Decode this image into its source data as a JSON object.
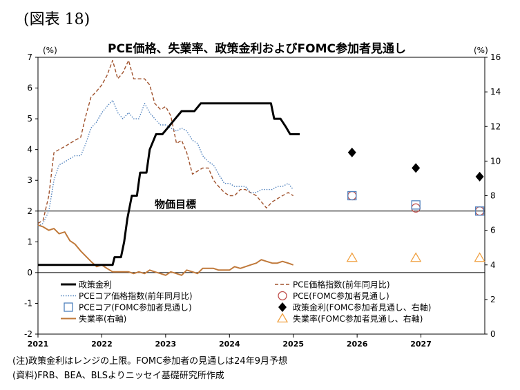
{
  "figure_label": "(図表 18)",
  "notes": [
    "(注)政策金利はレンジの上限。FOMC参加者の見通しは24年9月予想",
    "(資料)FRB、BEA、BLSよりニッセイ基礎研究所作成"
  ],
  "chart_data": {
    "type": "line",
    "title": "PCE価格、失業率、政策金利およびFOMC参加者見通し",
    "left_unit": "(%)",
    "right_unit": "(%)",
    "ylim_left": [
      -2,
      7
    ],
    "ylim_right": [
      0,
      16
    ],
    "x_range": [
      2021.0,
      2028.0
    ],
    "x_ticks": [
      "2021",
      "2022",
      "2023",
      "2024",
      "2025",
      "2026",
      "2027"
    ],
    "y_ticks_left": [
      "7",
      "6",
      "5",
      "4",
      "3",
      "2",
      "1",
      "0",
      "-1",
      "-2"
    ],
    "y_ticks_right": [
      "16",
      "14",
      "12",
      "10",
      "8",
      "6",
      "4",
      "2",
      "0"
    ],
    "target_line": {
      "value": 2,
      "label": "物価目標"
    },
    "grid": false,
    "legend_position": "bottom",
    "series": [
      {
        "name": "政策金利",
        "axis": "left",
        "style": "solid-thick",
        "color": "#000000",
        "points": [
          [
            2021.0,
            0.25
          ],
          [
            2022.0,
            0.25
          ],
          [
            2022.17,
            0.25
          ],
          [
            2022.2,
            0.5
          ],
          [
            2022.3,
            0.5
          ],
          [
            2022.35,
            1.0
          ],
          [
            2022.4,
            1.75
          ],
          [
            2022.47,
            2.5
          ],
          [
            2022.55,
            2.5
          ],
          [
            2022.6,
            3.25
          ],
          [
            2022.7,
            3.25
          ],
          [
            2022.75,
            4.0
          ],
          [
            2022.85,
            4.5
          ],
          [
            2022.95,
            4.5
          ],
          [
            2023.05,
            4.75
          ],
          [
            2023.15,
            5.0
          ],
          [
            2023.25,
            5.25
          ],
          [
            2023.35,
            5.25
          ],
          [
            2023.45,
            5.25
          ],
          [
            2023.55,
            5.5
          ],
          [
            2023.65,
            5.5
          ],
          [
            2024.65,
            5.5
          ],
          [
            2024.7,
            5.0
          ],
          [
            2024.8,
            5.0
          ],
          [
            2024.88,
            4.75
          ],
          [
            2024.95,
            4.5
          ],
          [
            2025.1,
            4.5
          ]
        ]
      },
      {
        "name": "PCE価格指数(前年同月比)",
        "axis": "left",
        "style": "dashed",
        "color": "#a0522d",
        "points": [
          [
            2021.0,
            1.6
          ],
          [
            2021.08,
            1.7
          ],
          [
            2021.17,
            2.5
          ],
          [
            2021.25,
            3.9
          ],
          [
            2021.33,
            4.0
          ],
          [
            2021.42,
            4.1
          ],
          [
            2021.5,
            4.2
          ],
          [
            2021.58,
            4.3
          ],
          [
            2021.67,
            4.4
          ],
          [
            2021.75,
            5.1
          ],
          [
            2021.83,
            5.7
          ],
          [
            2021.92,
            5.9
          ],
          [
            2022.0,
            6.1
          ],
          [
            2022.08,
            6.4
          ],
          [
            2022.17,
            6.9
          ],
          [
            2022.25,
            6.3
          ],
          [
            2022.33,
            6.5
          ],
          [
            2022.42,
            6.9
          ],
          [
            2022.5,
            6.3
          ],
          [
            2022.58,
            6.3
          ],
          [
            2022.67,
            6.3
          ],
          [
            2022.75,
            6.1
          ],
          [
            2022.83,
            5.5
          ],
          [
            2022.92,
            5.3
          ],
          [
            2023.0,
            5.4
          ],
          [
            2023.08,
            5.1
          ],
          [
            2023.17,
            4.2
          ],
          [
            2023.25,
            4.3
          ],
          [
            2023.33,
            3.9
          ],
          [
            2023.42,
            3.2
          ],
          [
            2023.5,
            3.3
          ],
          [
            2023.58,
            3.4
          ],
          [
            2023.67,
            3.4
          ],
          [
            2023.75,
            3.0
          ],
          [
            2023.83,
            2.8
          ],
          [
            2023.92,
            2.6
          ],
          [
            2024.0,
            2.5
          ],
          [
            2024.08,
            2.5
          ],
          [
            2024.17,
            2.7
          ],
          [
            2024.25,
            2.7
          ],
          [
            2024.33,
            2.6
          ],
          [
            2024.42,
            2.5
          ],
          [
            2024.5,
            2.3
          ],
          [
            2024.58,
            2.1
          ],
          [
            2024.67,
            2.3
          ],
          [
            2024.75,
            2.4
          ],
          [
            2024.83,
            2.5
          ],
          [
            2024.92,
            2.6
          ],
          [
            2025.0,
            2.5
          ]
        ]
      },
      {
        "name": "PCEコア価格指数(前年同月比)",
        "axis": "left",
        "style": "dotted",
        "color": "#4f81bd",
        "points": [
          [
            2021.0,
            1.5
          ],
          [
            2021.08,
            1.6
          ],
          [
            2021.17,
            2.0
          ],
          [
            2021.25,
            3.0
          ],
          [
            2021.33,
            3.5
          ],
          [
            2021.42,
            3.6
          ],
          [
            2021.5,
            3.7
          ],
          [
            2021.58,
            3.8
          ],
          [
            2021.67,
            3.8
          ],
          [
            2021.75,
            4.2
          ],
          [
            2021.83,
            4.7
          ],
          [
            2021.92,
            4.9
          ],
          [
            2022.0,
            5.2
          ],
          [
            2022.08,
            5.4
          ],
          [
            2022.17,
            5.6
          ],
          [
            2022.25,
            5.2
          ],
          [
            2022.33,
            5.0
          ],
          [
            2022.42,
            5.2
          ],
          [
            2022.5,
            5.0
          ],
          [
            2022.58,
            5.0
          ],
          [
            2022.67,
            5.5
          ],
          [
            2022.75,
            5.2
          ],
          [
            2022.83,
            5.0
          ],
          [
            2022.92,
            4.8
          ],
          [
            2023.0,
            4.8
          ],
          [
            2023.08,
            4.7
          ],
          [
            2023.17,
            4.6
          ],
          [
            2023.25,
            4.7
          ],
          [
            2023.33,
            4.6
          ],
          [
            2023.42,
            4.3
          ],
          [
            2023.5,
            4.2
          ],
          [
            2023.58,
            3.8
          ],
          [
            2023.67,
            3.6
          ],
          [
            2023.75,
            3.5
          ],
          [
            2023.83,
            3.2
          ],
          [
            2023.92,
            2.9
          ],
          [
            2024.0,
            2.9
          ],
          [
            2024.08,
            2.8
          ],
          [
            2024.17,
            2.8
          ],
          [
            2024.25,
            2.8
          ],
          [
            2024.33,
            2.6
          ],
          [
            2024.42,
            2.6
          ],
          [
            2024.5,
            2.7
          ],
          [
            2024.58,
            2.7
          ],
          [
            2024.67,
            2.7
          ],
          [
            2024.75,
            2.8
          ],
          [
            2024.83,
            2.8
          ],
          [
            2024.92,
            2.9
          ],
          [
            2025.0,
            2.7
          ]
        ]
      },
      {
        "name": "失業率(右軸)",
        "axis": "right",
        "style": "solid",
        "color": "#c0793a",
        "points": [
          [
            2021.0,
            6.3
          ],
          [
            2021.08,
            6.2
          ],
          [
            2021.17,
            6.0
          ],
          [
            2021.25,
            6.1
          ],
          [
            2021.33,
            5.8
          ],
          [
            2021.42,
            5.9
          ],
          [
            2021.5,
            5.4
          ],
          [
            2021.58,
            5.2
          ],
          [
            2021.67,
            4.8
          ],
          [
            2021.75,
            4.5
          ],
          [
            2021.83,
            4.2
          ],
          [
            2021.92,
            3.9
          ],
          [
            2022.0,
            4.0
          ],
          [
            2022.08,
            3.8
          ],
          [
            2022.17,
            3.6
          ],
          [
            2022.25,
            3.6
          ],
          [
            2022.33,
            3.6
          ],
          [
            2022.42,
            3.6
          ],
          [
            2022.5,
            3.5
          ],
          [
            2022.58,
            3.6
          ],
          [
            2022.67,
            3.5
          ],
          [
            2022.75,
            3.7
          ],
          [
            2022.83,
            3.6
          ],
          [
            2022.92,
            3.5
          ],
          [
            2023.0,
            3.4
          ],
          [
            2023.08,
            3.6
          ],
          [
            2023.17,
            3.5
          ],
          [
            2023.25,
            3.4
          ],
          [
            2023.33,
            3.7
          ],
          [
            2023.42,
            3.6
          ],
          [
            2023.5,
            3.5
          ],
          [
            2023.58,
            3.8
          ],
          [
            2023.67,
            3.8
          ],
          [
            2023.75,
            3.8
          ],
          [
            2023.83,
            3.7
          ],
          [
            2023.92,
            3.7
          ],
          [
            2024.0,
            3.7
          ],
          [
            2024.08,
            3.9
          ],
          [
            2024.17,
            3.8
          ],
          [
            2024.25,
            3.9
          ],
          [
            2024.33,
            4.0
          ],
          [
            2024.42,
            4.1
          ],
          [
            2024.5,
            4.3
          ],
          [
            2024.58,
            4.2
          ],
          [
            2024.67,
            4.1
          ],
          [
            2024.75,
            4.1
          ],
          [
            2024.83,
            4.2
          ],
          [
            2024.92,
            4.1
          ],
          [
            2025.0,
            4.0
          ]
        ]
      }
    ],
    "projections": [
      {
        "name": "PCE(FOMC参加者見通し)",
        "axis": "left",
        "marker": "circle-open",
        "color": "#c0504d",
        "points": [
          [
            2025.92,
            2.5
          ],
          [
            2026.92,
            2.1
          ],
          [
            2027.92,
            2.0
          ]
        ]
      },
      {
        "name": "PCEコア(FOMC参加者見通し)",
        "axis": "left",
        "marker": "square-open",
        "color": "#4f81bd",
        "points": [
          [
            2025.92,
            2.5
          ],
          [
            2026.92,
            2.2
          ],
          [
            2027.92,
            2.0
          ]
        ]
      },
      {
        "name": "政策金利(FOMC参加者見通し、右軸)",
        "axis": "right",
        "marker": "diamond-filled",
        "color": "#000000",
        "points": [
          [
            2025.92,
            10.5
          ],
          [
            2026.92,
            9.6
          ],
          [
            2027.92,
            9.1
          ]
        ]
      },
      {
        "name": "失業率(FOMC参加者見通し、右軸)",
        "axis": "right",
        "marker": "triangle-open",
        "color": "#f0a040",
        "points": [
          [
            2025.92,
            4.4
          ],
          [
            2026.92,
            4.4
          ],
          [
            2027.92,
            4.4
          ]
        ]
      }
    ],
    "legend": [
      {
        "label": "政策金利",
        "kind": "line-thick",
        "color": "#000000"
      },
      {
        "label": "PCE価格指数(前年同月比)",
        "kind": "line-dashed",
        "color": "#a0522d"
      },
      {
        "label": "PCEコア価格指数(前年同月比)",
        "kind": "line-dotted",
        "color": "#4f81bd"
      },
      {
        "label": "PCE(FOMC参加者見通し)",
        "kind": "circle-open",
        "color": "#c0504d"
      },
      {
        "label": "PCEコア(FOMC参加者見通し)",
        "kind": "square-open",
        "color": "#4f81bd"
      },
      {
        "label": "政策金利(FOMC参加者見通し、右軸)",
        "kind": "diamond-filled",
        "color": "#000000"
      },
      {
        "label": "失業率(右軸)",
        "kind": "line-solid",
        "color": "#c0793a"
      },
      {
        "label": "失業率(FOMC参加者見通し、右軸)",
        "kind": "triangle-open",
        "color": "#f0a040"
      }
    ]
  }
}
